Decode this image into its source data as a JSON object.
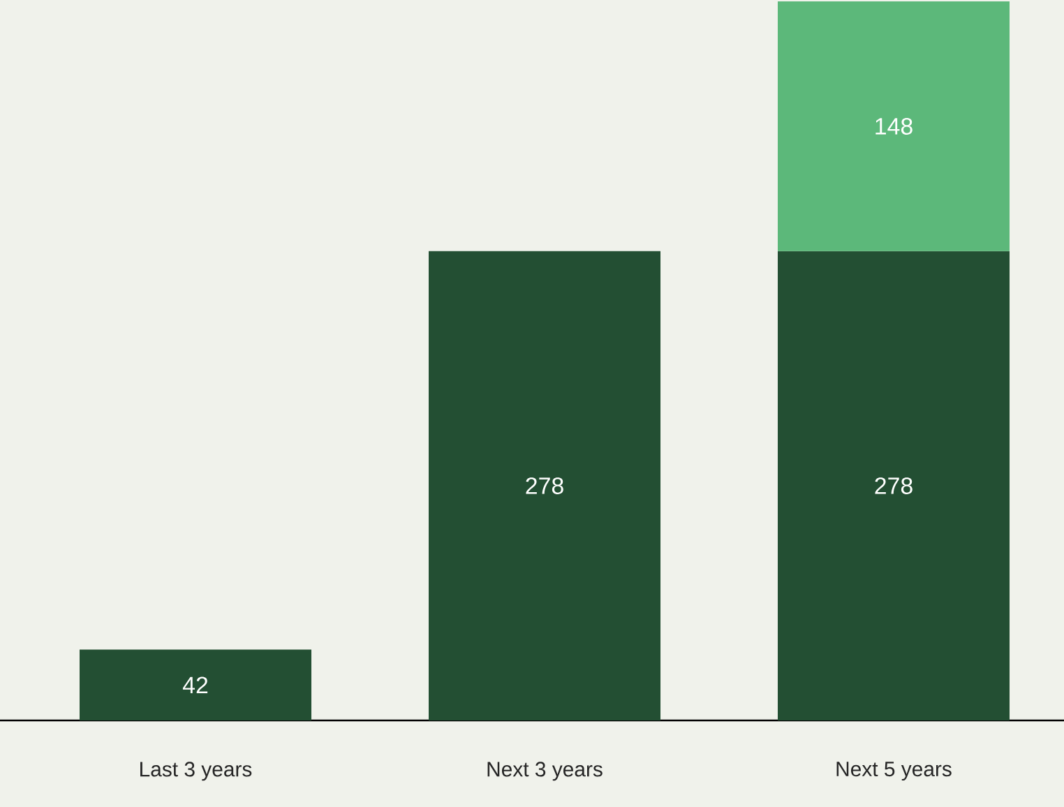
{
  "chart_data": {
    "type": "bar",
    "stacked": true,
    "data_labels": true,
    "categories": [
      "Last 3 years",
      "Next 3 years",
      "Next 5 years"
    ],
    "series": [
      {
        "color": "#234f33",
        "values": [
          42,
          278,
          278
        ]
      },
      {
        "color": "#5cb87a",
        "values": [
          null,
          null,
          148
        ]
      }
    ]
  }
}
